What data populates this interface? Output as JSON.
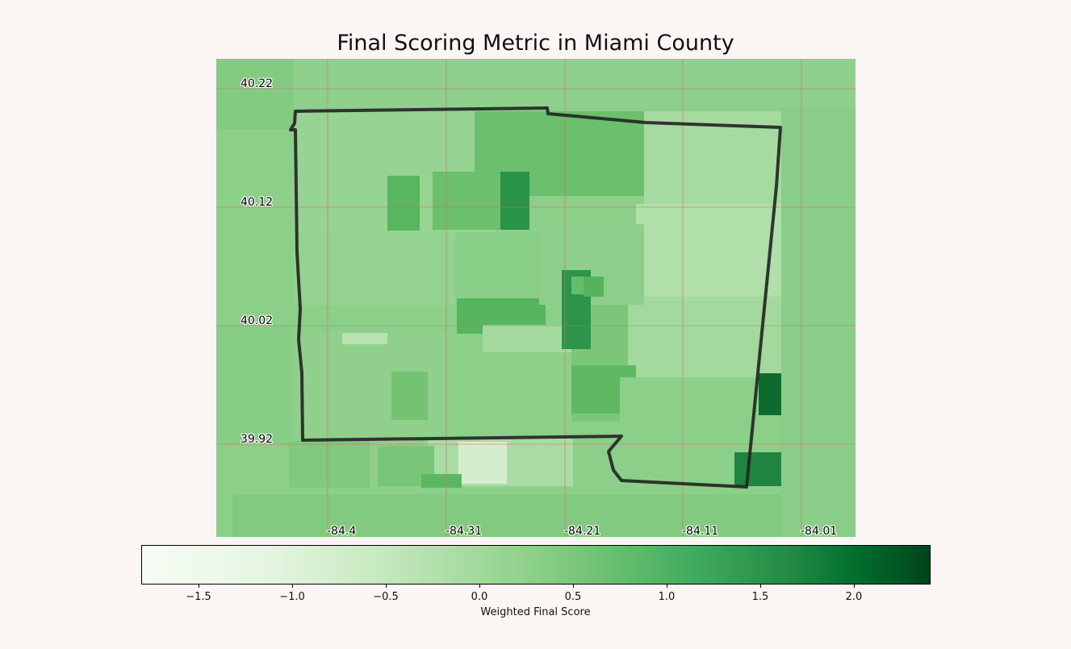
{
  "title": "Final Scoring Metric in Miami County",
  "map": {
    "lat_labels": [
      "40.22",
      "40.12",
      "40.02",
      "39.92"
    ],
    "lon_labels": [
      "-84.4",
      "-84.31",
      "-84.21",
      "-84.11",
      "-84.01"
    ],
    "boundary_color": "#222222",
    "gridline_color": "#d46a6a"
  },
  "colorbar": {
    "title": "Weighted Final Score",
    "colormap": "Greens",
    "range": [
      -1.8,
      2.4
    ],
    "ticks": [
      "−1.5",
      "−1.0",
      "−0.5",
      "0.0",
      "0.5",
      "1.0",
      "1.5",
      "2.0"
    ]
  }
}
